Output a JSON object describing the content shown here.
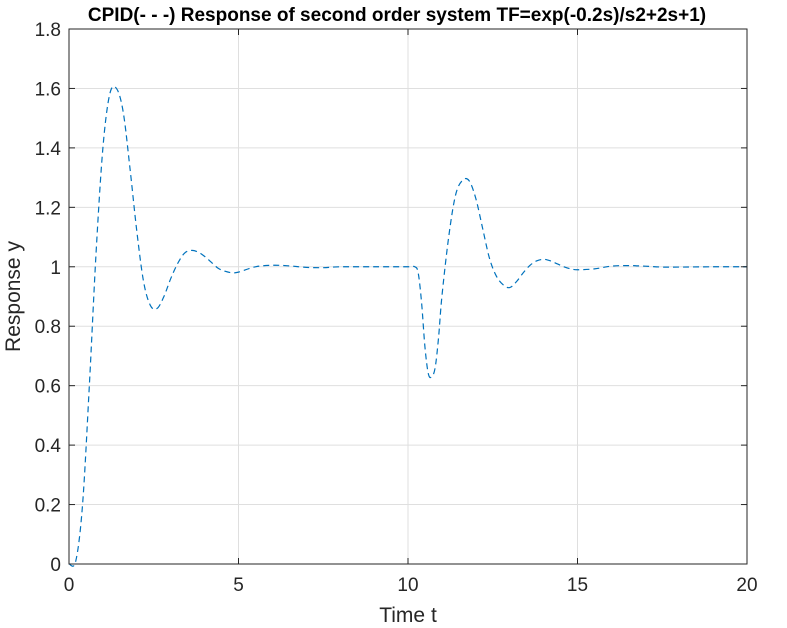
{
  "chart_data": {
    "type": "line",
    "title": "CPID(- - -) Response of second order system TF=exp(-0.2s)/s2+2s+1)",
    "xlabel": "Time t",
    "ylabel": "Response y",
    "xlim": [
      0,
      20
    ],
    "ylim": [
      0,
      1.8
    ],
    "xticks": [
      0,
      5,
      10,
      15,
      20
    ],
    "xtick_labels": [
      "0",
      "5",
      "10",
      "15",
      "20"
    ],
    "yticks": [
      0,
      0.2,
      0.4,
      0.6,
      0.8,
      1,
      1.2,
      1.4,
      1.6,
      1.8
    ],
    "ytick_labels": [
      "0",
      "0.2",
      "0.4",
      "0.6",
      "0.8",
      "1",
      "1.2",
      "1.4",
      "1.6",
      "1.8"
    ],
    "grid": true,
    "legend": "none",
    "series": [
      {
        "line_style": "dashed",
        "color": "#0072BD",
        "x": [
          0,
          0.2,
          0.4,
          0.6,
          0.8,
          1.0,
          1.2,
          1.4,
          1.6,
          1.8,
          2.0,
          2.2,
          2.4,
          2.6,
          2.8,
          3.0,
          3.2,
          3.4,
          3.6,
          3.8,
          4.0,
          4.2,
          4.4,
          4.6,
          4.8,
          5.0,
          5.5,
          6.0,
          6.5,
          7.0,
          7.5,
          8.0,
          9.0,
          10.0,
          10.2,
          10.3,
          10.4,
          10.5,
          10.6,
          10.7,
          10.8,
          10.9,
          11.0,
          11.2,
          11.4,
          11.6,
          11.8,
          12.0,
          12.2,
          12.4,
          12.6,
          12.8,
          13.0,
          13.2,
          13.4,
          13.6,
          13.8,
          14.0,
          14.2,
          14.4,
          14.6,
          14.8,
          15.0,
          15.5,
          16.0,
          16.5,
          17.0,
          17.5,
          18.0,
          19.0,
          20.0
        ],
        "y": [
          0,
          0.01,
          0.2,
          0.6,
          1.05,
          1.4,
          1.58,
          1.6,
          1.52,
          1.33,
          1.12,
          0.95,
          0.87,
          0.86,
          0.9,
          0.96,
          1.01,
          1.045,
          1.055,
          1.05,
          1.035,
          1.015,
          0.995,
          0.985,
          0.98,
          0.982,
          1.0,
          1.005,
          1.003,
          0.998,
          0.997,
          1.0,
          1.0,
          1.0,
          1.0,
          0.98,
          0.88,
          0.73,
          0.64,
          0.63,
          0.66,
          0.76,
          0.9,
          1.1,
          1.24,
          1.29,
          1.29,
          1.23,
          1.13,
          1.03,
          0.97,
          0.94,
          0.93,
          0.95,
          0.98,
          1.005,
          1.02,
          1.025,
          1.02,
          1.01,
          1.0,
          0.993,
          0.99,
          0.993,
          1.002,
          1.004,
          1.002,
          0.999,
          0.999,
          1.0,
          1.0
        ]
      }
    ]
  }
}
